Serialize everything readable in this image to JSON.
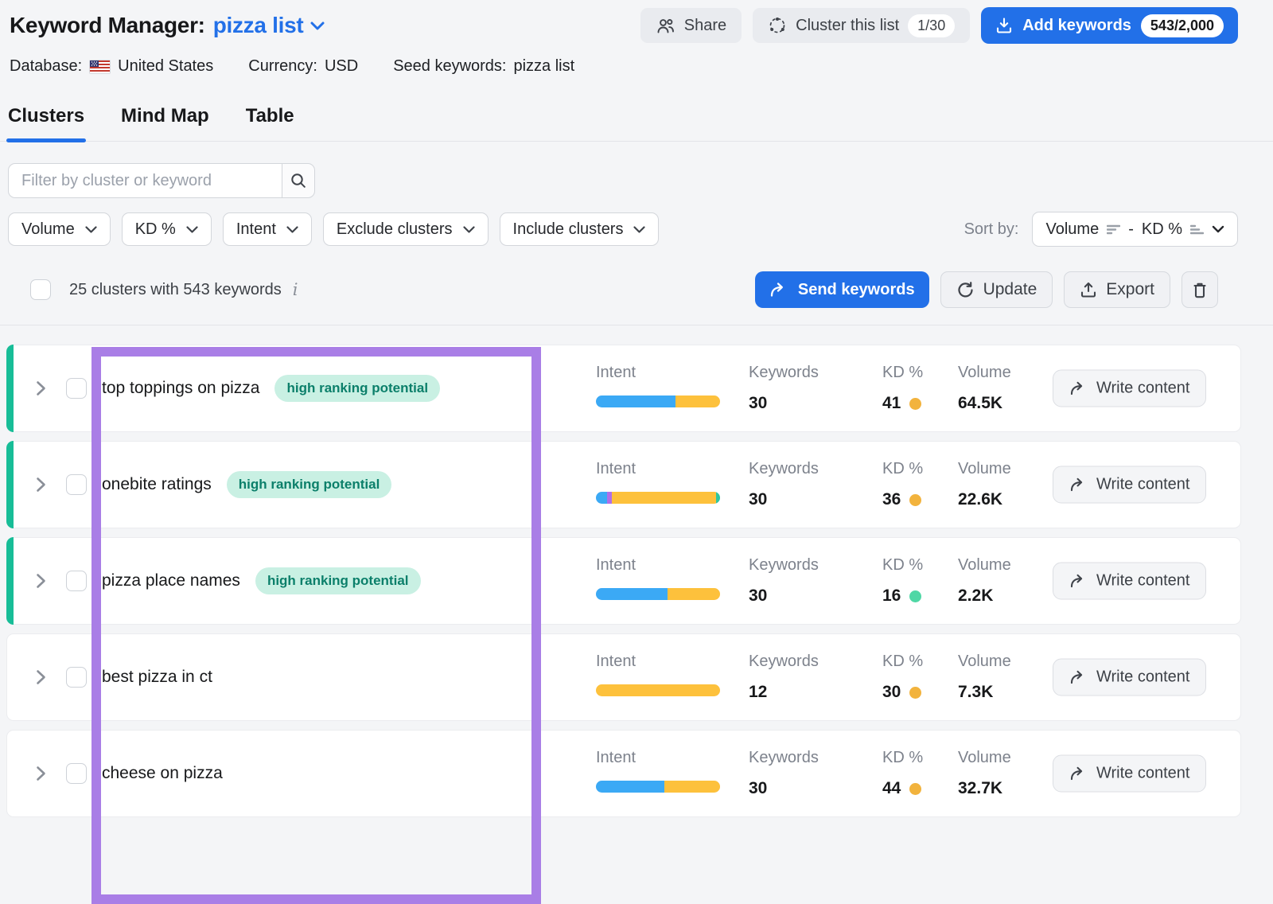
{
  "header": {
    "title": "Keyword Manager:",
    "list_name": "pizza list",
    "buttons": {
      "share": "Share",
      "cluster": "Cluster this list",
      "cluster_badge": "1/30",
      "add_keywords": "Add keywords",
      "add_keywords_badge": "543/2,000"
    }
  },
  "meta": {
    "database_label": "Database:",
    "database_value": "United States",
    "currency_label": "Currency:",
    "currency_value": "USD",
    "seed_label": "Seed keywords:",
    "seed_value": "pizza list"
  },
  "tabs": [
    {
      "label": "Clusters",
      "active": true
    },
    {
      "label": "Mind Map",
      "active": false
    },
    {
      "label": "Table",
      "active": false
    }
  ],
  "filters": {
    "search_placeholder": "Filter by cluster or keyword",
    "dropdowns": [
      "Volume",
      "KD %",
      "Intent",
      "Exclude clusters",
      "Include clusters"
    ],
    "sort": {
      "label": "Sort by:",
      "primary": "Volume",
      "separator": "-",
      "secondary": "KD %"
    }
  },
  "toolbar": {
    "selection_text": "25 clusters with 543 keywords",
    "send_keywords": "Send keywords",
    "update": "Update",
    "export": "Export"
  },
  "table": {
    "columns": {
      "intent": "Intent",
      "keywords": "Keywords",
      "kd": "KD %",
      "volume": "Volume"
    },
    "write_content": "Write content",
    "badge_label": "high ranking potential",
    "rows": [
      {
        "name": "top toppings on pizza",
        "badge": true,
        "accent": true,
        "keywords": "30",
        "kd": "41",
        "kd_dot": "#f2b33d",
        "volume": "64.5K",
        "intent": [
          {
            "color": "#3ba9f5",
            "pct": 64
          },
          {
            "color": "#fdc13c",
            "pct": 36
          }
        ]
      },
      {
        "name": "onebite ratings",
        "badge": true,
        "accent": true,
        "keywords": "30",
        "kd": "36",
        "kd_dot": "#f2b33d",
        "volume": "22.6K",
        "intent": [
          {
            "color": "#3ba9f5",
            "pct": 9
          },
          {
            "color": "#b06ee8",
            "pct": 4
          },
          {
            "color": "#fdc13c",
            "pct": 84
          },
          {
            "color": "#2fc6a0",
            "pct": 3
          }
        ]
      },
      {
        "name": "pizza place names",
        "badge": true,
        "accent": true,
        "keywords": "30",
        "kd": "16",
        "kd_dot": "#4fd7a5",
        "volume": "2.2K",
        "intent": [
          {
            "color": "#3ba9f5",
            "pct": 58
          },
          {
            "color": "#fdc13c",
            "pct": 42
          }
        ]
      },
      {
        "name": "best pizza in ct",
        "badge": false,
        "accent": false,
        "keywords": "12",
        "kd": "30",
        "kd_dot": "#f2b33d",
        "volume": "7.3K",
        "intent": [
          {
            "color": "#fdc13c",
            "pct": 100
          }
        ]
      },
      {
        "name": "cheese on pizza",
        "badge": false,
        "accent": false,
        "keywords": "30",
        "kd": "44",
        "kd_dot": "#f2b33d",
        "volume": "32.7K",
        "intent": [
          {
            "color": "#3ba9f5",
            "pct": 55
          },
          {
            "color": "#fdc13c",
            "pct": 45
          }
        ]
      }
    ]
  },
  "colors": {
    "primary_blue": "#2270e8",
    "overlay_purple": "#a97ee6",
    "accent_green": "#17bd97",
    "badge_bg": "#c9f0e3",
    "badge_text": "#0b7f6a",
    "kd_yellow": "#f2b33d",
    "kd_green": "#4fd7a5",
    "intent_blue": "#3ba9f5",
    "intent_yellow": "#fdc13c",
    "intent_purple": "#b06ee8",
    "intent_teal": "#2fc6a0"
  }
}
